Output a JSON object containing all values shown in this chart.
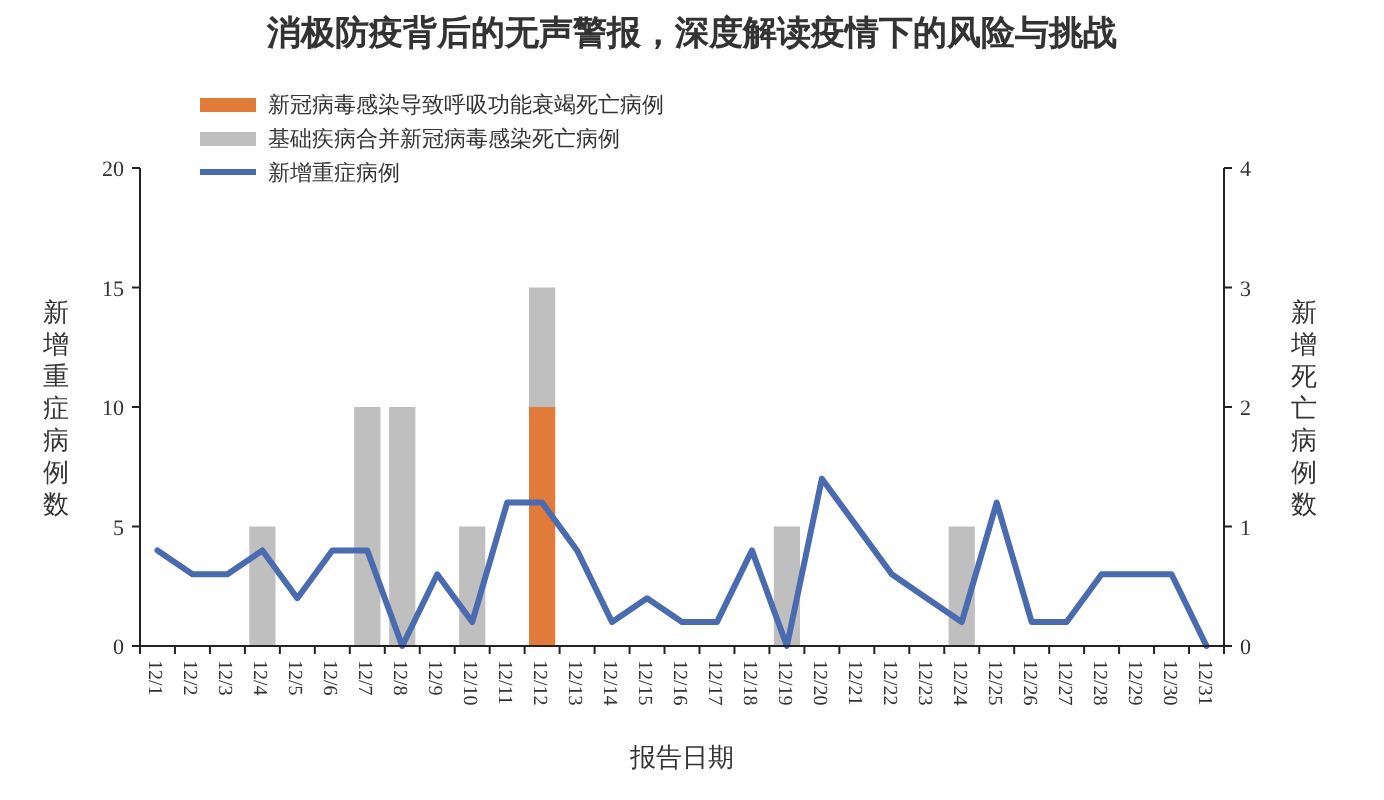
{
  "chart_data": {
    "type": "bar",
    "stacked": true,
    "title": "消极防疫背后的无声警报，深度解读疫情下的风险与挑战",
    "xlabel": "报告日期",
    "ylabel": "新增重症病例数",
    "y2label": "新增死亡病例数",
    "categories": [
      "12/1",
      "12/2",
      "12/3",
      "12/4",
      "12/5",
      "12/6",
      "12/7",
      "12/8",
      "12/9",
      "12/10",
      "12/11",
      "12/12",
      "12/13",
      "12/14",
      "12/15",
      "12/16",
      "12/17",
      "12/18",
      "12/19",
      "12/20",
      "12/21",
      "12/22",
      "12/23",
      "12/24",
      "12/25",
      "12/26",
      "12/27",
      "12/28",
      "12/29",
      "12/30",
      "12/31"
    ],
    "series": [
      {
        "name": "新冠病毒感染导致呼吸功能衰竭死亡病例",
        "axis": "y2",
        "color": "#e07b39",
        "values": [
          0,
          0,
          0,
          0,
          0,
          0,
          0,
          0,
          0,
          0,
          0,
          2,
          0,
          0,
          0,
          0,
          0,
          0,
          0,
          0,
          0,
          0,
          0,
          0,
          0,
          0,
          0,
          0,
          0,
          0,
          0
        ]
      },
      {
        "name": "基础疾病合并新冠病毒感染死亡病例",
        "axis": "y2",
        "color": "#bfbfbf",
        "values": [
          0,
          0,
          0,
          1,
          0,
          0,
          2,
          2,
          0,
          1,
          0,
          1,
          0,
          0,
          0,
          0,
          0,
          0,
          1,
          0,
          0,
          0,
          0,
          1,
          0,
          0,
          0,
          0,
          0,
          0,
          0
        ]
      },
      {
        "name": "新增重症病例",
        "type": "line",
        "color": "#4a6bb0",
        "values": [
          4,
          3,
          3,
          4,
          2,
          4,
          4,
          0,
          3,
          1,
          6,
          6,
          4,
          1,
          2,
          1,
          1,
          4,
          0,
          7,
          5,
          3,
          2,
          1,
          6,
          1,
          1,
          3,
          3,
          3,
          0
        ]
      }
    ],
    "ylim": [
      0,
      20
    ],
    "yticks": [
      0,
      5,
      10,
      15,
      20
    ],
    "y2lim": [
      0,
      4
    ],
    "y2ticks": [
      0,
      1,
      2,
      3,
      4
    ],
    "grid": false,
    "legend": "top left",
    "marker": "none",
    "line_style": "solid"
  }
}
